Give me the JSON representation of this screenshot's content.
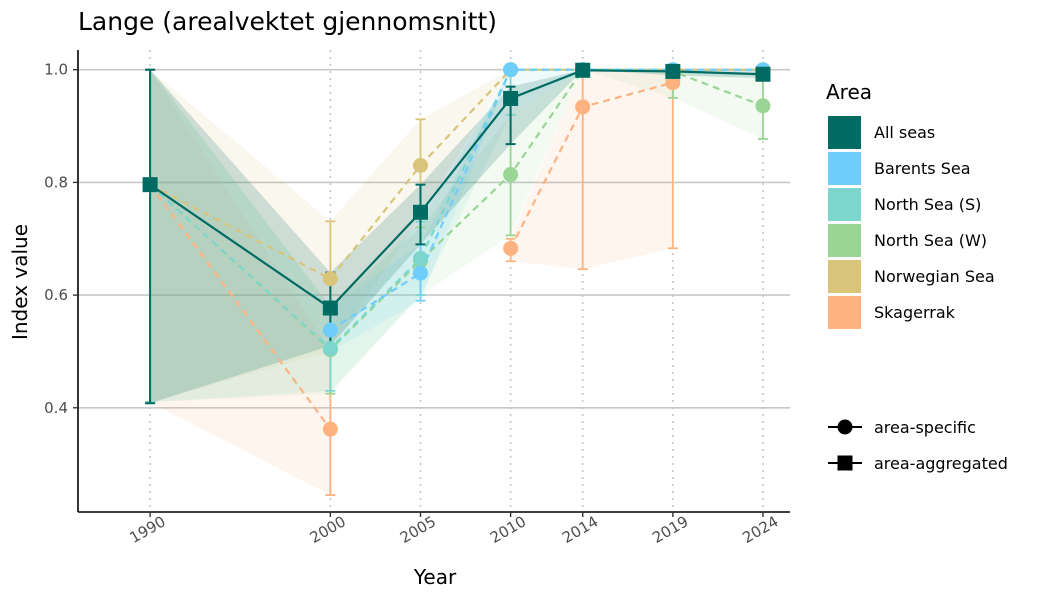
{
  "chart_data": {
    "type": "line",
    "title": "Lange (arealvektet gjennomsnitt)",
    "xlabel": "Year",
    "ylabel": "Index value",
    "x": [
      1990,
      2000,
      2005,
      2010,
      2014,
      2019,
      2024
    ],
    "xlim": [
      1986,
      2025.5
    ],
    "ylim": [
      0.215,
      1.035
    ],
    "yticks": [
      0.4,
      0.6,
      0.8,
      1.0
    ],
    "ytick_labels": [
      "0.4",
      "0.6",
      "0.8",
      "1.0"
    ],
    "legend": {
      "title": "Area",
      "placement": "right",
      "shape_entries": [
        {
          "label": "area-specific",
          "shape": "circle"
        },
        {
          "label": "area-aggregated",
          "shape": "square"
        }
      ]
    },
    "series": [
      {
        "name": "Skagerrak",
        "color": "#FDB280",
        "shape": "circle",
        "dashed": true,
        "values": [
          0.796,
          0.362,
          null,
          0.683,
          0.934,
          0.977,
          null
        ],
        "lower": [
          0.41,
          0.245,
          null,
          0.66,
          0.646,
          0.683,
          null
        ],
        "upper": [
          1.0,
          0.5,
          null,
          0.7,
          1.0,
          1.0,
          null
        ]
      },
      {
        "name": "Norwegian Sea",
        "color": "#D8C57A",
        "shape": "circle",
        "dashed": true,
        "values": [
          0.796,
          0.629,
          0.83,
          1.0,
          1.0,
          1.0,
          1.0
        ],
        "lower": [
          0.41,
          0.5,
          0.74,
          1.0,
          1.0,
          1.0,
          1.0
        ],
        "upper": [
          1.0,
          0.731,
          0.912,
          1.0,
          1.0,
          1.0,
          1.0
        ]
      },
      {
        "name": "North Sea (W)",
        "color": "#99D594",
        "shape": "circle",
        "dashed": true,
        "values": [
          0.796,
          0.503,
          0.661,
          0.814,
          1.0,
          0.997,
          0.936
        ],
        "lower": [
          0.41,
          0.425,
          0.6,
          0.706,
          1.0,
          0.95,
          0.877
        ],
        "upper": [
          1.0,
          0.58,
          0.72,
          0.92,
          1.0,
          1.0,
          0.99
        ]
      },
      {
        "name": "North Sea (S)",
        "color": "#7DD6CE",
        "shape": "circle",
        "dashed": true,
        "values": [
          0.796,
          0.505,
          0.665,
          1.0,
          1.0,
          1.0,
          null
        ],
        "lower": [
          0.41,
          0.43,
          0.6,
          0.92,
          1.0,
          1.0,
          null
        ],
        "upper": [
          1.0,
          0.58,
          0.73,
          1.0,
          1.0,
          1.0,
          null
        ]
      },
      {
        "name": "Barents Sea",
        "color": "#6FCDFA",
        "shape": "circle",
        "dashed": true,
        "values": [
          null,
          0.538,
          0.639,
          1.0,
          1.0,
          1.0,
          1.0
        ],
        "lower": [
          null,
          0.5,
          0.59,
          1.0,
          1.0,
          1.0,
          1.0
        ],
        "upper": [
          null,
          0.58,
          0.69,
          1.0,
          1.0,
          1.0,
          1.0
        ]
      },
      {
        "name": "All seas",
        "color": "#006B63",
        "shape": "square",
        "dashed": false,
        "values": [
          0.796,
          0.577,
          0.747,
          0.949,
          0.999,
          0.997,
          0.992
        ],
        "lower": [
          0.408,
          0.51,
          0.69,
          0.868,
          1.0,
          0.99,
          0.985
        ],
        "upper": [
          1.0,
          0.64,
          0.796,
          0.97,
          1.0,
          1.0,
          1.0
        ]
      }
    ]
  }
}
